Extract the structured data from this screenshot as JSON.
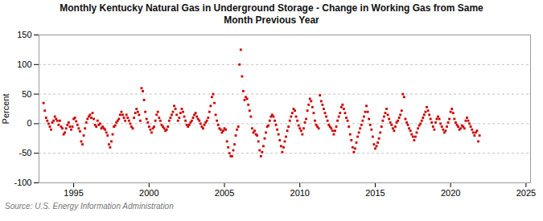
{
  "chart_data": {
    "type": "scatter",
    "title": "Monthly Kentucky Natural Gas in Underground Storage - Change in Working Gas from Same\nMonth Previous Year",
    "ylabel": "Percent",
    "source": "Source: U.S. Energy Information Administration",
    "color": "#cc0000",
    "marker": "square",
    "grid": true,
    "xlim": [
      1992.7,
      2025.3
    ],
    "xticks": [
      1995,
      2000,
      2005,
      2010,
      2015,
      2020,
      2025
    ],
    "ylim": [
      -100,
      150
    ],
    "yticks": [
      -100,
      -50,
      0,
      50,
      100,
      150
    ],
    "x": [
      1993,
      1993.0833,
      1993.1667,
      1993.25,
      1993.3333,
      1993.4167,
      1993.5,
      1993.5833,
      1993.6667,
      1993.75,
      1993.8333,
      1993.9167,
      1994,
      1994.0833,
      1994.1667,
      1994.25,
      1994.3333,
      1994.4167,
      1994.5,
      1994.5833,
      1994.6667,
      1994.75,
      1994.8333,
      1994.9167,
      1995,
      1995.0833,
      1995.1667,
      1995.25,
      1995.3333,
      1995.4167,
      1995.5,
      1995.5833,
      1995.6667,
      1995.75,
      1995.8333,
      1995.9167,
      1996,
      1996.0833,
      1996.1667,
      1996.25,
      1996.3333,
      1996.4167,
      1996.5,
      1996.5833,
      1996.6667,
      1996.75,
      1996.8333,
      1996.9167,
      1997,
      1997.0833,
      1997.1667,
      1997.25,
      1997.3333,
      1997.4167,
      1997.5,
      1997.5833,
      1997.6667,
      1997.75,
      1997.8333,
      1997.9167,
      1998,
      1998.0833,
      1998.1667,
      1998.25,
      1998.3333,
      1998.4167,
      1998.5,
      1998.5833,
      1998.6667,
      1998.75,
      1998.8333,
      1998.9167,
      1999,
      1999.0833,
      1999.1667,
      1999.25,
      1999.3333,
      1999.4167,
      1999.5,
      1999.5833,
      1999.6667,
      1999.75,
      1999.8333,
      1999.9167,
      2000,
      2000.0833,
      2000.1667,
      2000.25,
      2000.3333,
      2000.4167,
      2000.5,
      2000.5833,
      2000.6667,
      2000.75,
      2000.8333,
      2000.9167,
      2001,
      2001.0833,
      2001.1667,
      2001.25,
      2001.3333,
      2001.4167,
      2001.5,
      2001.5833,
      2001.6667,
      2001.75,
      2001.8333,
      2001.9167,
      2002,
      2002.0833,
      2002.1667,
      2002.25,
      2002.3333,
      2002.4167,
      2002.5,
      2002.5833,
      2002.6667,
      2002.75,
      2002.8333,
      2002.9167,
      2003,
      2003.0833,
      2003.1667,
      2003.25,
      2003.3333,
      2003.4167,
      2003.5,
      2003.5833,
      2003.6667,
      2003.75,
      2003.8333,
      2003.9167,
      2004,
      2004.0833,
      2004.1667,
      2004.25,
      2004.3333,
      2004.4167,
      2004.5,
      2004.5833,
      2004.6667,
      2004.75,
      2004.8333,
      2004.9167,
      2005,
      2005.0833,
      2005.1667,
      2005.25,
      2005.3333,
      2005.4167,
      2005.5,
      2005.5833,
      2005.6667,
      2005.75,
      2005.8333,
      2005.9167,
      2006,
      2006.0833,
      2006.1667,
      2006.25,
      2006.3333,
      2006.4167,
      2006.5,
      2006.5833,
      2006.6667,
      2006.75,
      2006.8333,
      2006.9167,
      2007,
      2007.0833,
      2007.1667,
      2007.25,
      2007.3333,
      2007.4167,
      2007.5,
      2007.5833,
      2007.6667,
      2007.75,
      2007.8333,
      2007.9167,
      2008,
      2008.0833,
      2008.1667,
      2008.25,
      2008.3333,
      2008.4167,
      2008.5,
      2008.5833,
      2008.6667,
      2008.75,
      2008.8333,
      2008.9167,
      2009,
      2009.0833,
      2009.1667,
      2009.25,
      2009.3333,
      2009.4167,
      2009.5,
      2009.5833,
      2009.6667,
      2009.75,
      2009.8333,
      2009.9167,
      2010,
      2010.0833,
      2010.1667,
      2010.25,
      2010.3333,
      2010.4167,
      2010.5,
      2010.5833,
      2010.6667,
      2010.75,
      2010.8333,
      2010.9167,
      2011,
      2011.0833,
      2011.1667,
      2011.25,
      2011.3333,
      2011.4167,
      2011.5,
      2011.5833,
      2011.6667,
      2011.75,
      2011.8333,
      2011.9167,
      2012,
      2012.0833,
      2012.1667,
      2012.25,
      2012.3333,
      2012.4167,
      2012.5,
      2012.5833,
      2012.6667,
      2012.75,
      2012.8333,
      2012.9167,
      2013,
      2013.0833,
      2013.1667,
      2013.25,
      2013.3333,
      2013.4167,
      2013.5,
      2013.5833,
      2013.6667,
      2013.75,
      2013.8333,
      2013.9167,
      2014,
      2014.0833,
      2014.1667,
      2014.25,
      2014.3333,
      2014.4167,
      2014.5,
      2014.5833,
      2014.6667,
      2014.75,
      2014.8333,
      2014.9167,
      2015,
      2015.0833,
      2015.1667,
      2015.25,
      2015.3333,
      2015.4167,
      2015.5,
      2015.5833,
      2015.6667,
      2015.75,
      2015.8333,
      2015.9167,
      2016,
      2016.0833,
      2016.1667,
      2016.25,
      2016.3333,
      2016.4167,
      2016.5,
      2016.5833,
      2016.6667,
      2016.75,
      2016.8333,
      2016.9167,
      2017,
      2017.0833,
      2017.1667,
      2017.25,
      2017.3333,
      2017.4167,
      2017.5,
      2017.5833,
      2017.6667,
      2017.75,
      2017.8333,
      2017.9167,
      2018,
      2018.0833,
      2018.1667,
      2018.25,
      2018.3333,
      2018.4167,
      2018.5,
      2018.5833,
      2018.6667,
      2018.75,
      2018.8333,
      2018.9167,
      2019,
      2019.0833,
      2019.1667,
      2019.25,
      2019.3333,
      2019.4167,
      2019.5,
      2019.5833,
      2019.6667,
      2019.75,
      2019.8333,
      2019.9167,
      2020,
      2020.0833,
      2020.1667,
      2020.25,
      2020.3333,
      2020.4167,
      2020.5,
      2020.5833,
      2020.6667,
      2020.75,
      2020.8333,
      2020.9167,
      2021,
      2021.0833,
      2021.1667,
      2021.25,
      2021.3333,
      2021.4167,
      2021.5,
      2021.5833,
      2021.6667,
      2021.75,
      2021.8333,
      2021.9167
    ],
    "values": [
      35,
      22,
      10,
      5,
      0,
      -5,
      -10,
      2,
      5,
      12,
      8,
      5,
      -2,
      5,
      -5,
      -8,
      -18,
      -15,
      -8,
      -2,
      2,
      -5,
      -10,
      -5,
      8,
      10,
      4,
      -2,
      -8,
      -13,
      -30,
      -35,
      -20,
      -8,
      2,
      8,
      12,
      15,
      10,
      18,
      8,
      -2,
      -5,
      5,
      -2,
      0,
      -8,
      -5,
      -8,
      -10,
      -15,
      -20,
      -35,
      -40,
      -30,
      -18,
      -5,
      -3,
      2,
      5,
      8,
      15,
      20,
      15,
      10,
      5,
      15,
      10,
      5,
      0,
      -5,
      -8,
      10,
      18,
      25,
      20,
      15,
      5,
      60,
      55,
      40,
      20,
      8,
      2,
      -5,
      -10,
      -15,
      -8,
      -5,
      5,
      15,
      20,
      10,
      5,
      -2,
      -5,
      -8,
      -12,
      -10,
      -5,
      5,
      10,
      15,
      20,
      30,
      25,
      15,
      5,
      10,
      18,
      25,
      20,
      12,
      5,
      -2,
      -5,
      -2,
      2,
      5,
      10,
      15,
      18,
      12,
      8,
      5,
      0,
      -5,
      -8,
      -2,
      2,
      5,
      10,
      20,
      30,
      45,
      50,
      35,
      15,
      5,
      -2,
      -8,
      -10,
      -15,
      -12,
      -8,
      -10,
      -30,
      -40,
      -50,
      -55,
      -55,
      -45,
      -35,
      -20,
      -10,
      -5,
      100,
      125,
      80,
      55,
      40,
      45,
      42,
      32,
      22,
      12,
      -8,
      -15,
      -12,
      -18,
      -20,
      -30,
      -45,
      -55,
      -48,
      -38,
      -25,
      -15,
      -5,
      -3,
      5,
      12,
      15,
      12,
      5,
      -2,
      -10,
      -18,
      -28,
      -38,
      -48,
      -40,
      -30,
      -22,
      -12,
      -5,
      5,
      12,
      18,
      25,
      22,
      12,
      5,
      -3,
      -8,
      -12,
      -18,
      -8,
      2,
      8,
      22,
      32,
      42,
      38,
      28,
      18,
      5,
      -2,
      -5,
      -8,
      48,
      38,
      32,
      25,
      18,
      12,
      5,
      -2,
      -5,
      -8,
      -12,
      -18,
      -12,
      -5,
      5,
      12,
      18,
      28,
      32,
      25,
      18,
      10,
      5,
      -5,
      -18,
      -28,
      -40,
      -48,
      -42,
      -32,
      -22,
      -15,
      -8,
      -2,
      5,
      12,
      20,
      30,
      20,
      8,
      -2,
      -10,
      -22,
      -35,
      -42,
      -38,
      -32,
      -25,
      -15,
      -5,
      5,
      12,
      18,
      25,
      15,
      8,
      2,
      -2,
      -8,
      -12,
      -5,
      2,
      5,
      10,
      15,
      22,
      50,
      45,
      8,
      2,
      -2,
      -8,
      -12,
      -18,
      -22,
      -28,
      -22,
      -15,
      -8,
      -3,
      0,
      5,
      10,
      15,
      20,
      28,
      22,
      15,
      8,
      2,
      -5,
      -10,
      2,
      8,
      12,
      8,
      0,
      -5,
      -10,
      -15,
      -12,
      -5,
      2,
      8,
      20,
      25,
      18,
      8,
      2,
      -2,
      -5,
      -10,
      -8,
      -3,
      -5,
      -8,
      5,
      10,
      5,
      0,
      -5,
      -10,
      -15,
      -20,
      -15,
      -12,
      -30,
      -20
    ]
  }
}
